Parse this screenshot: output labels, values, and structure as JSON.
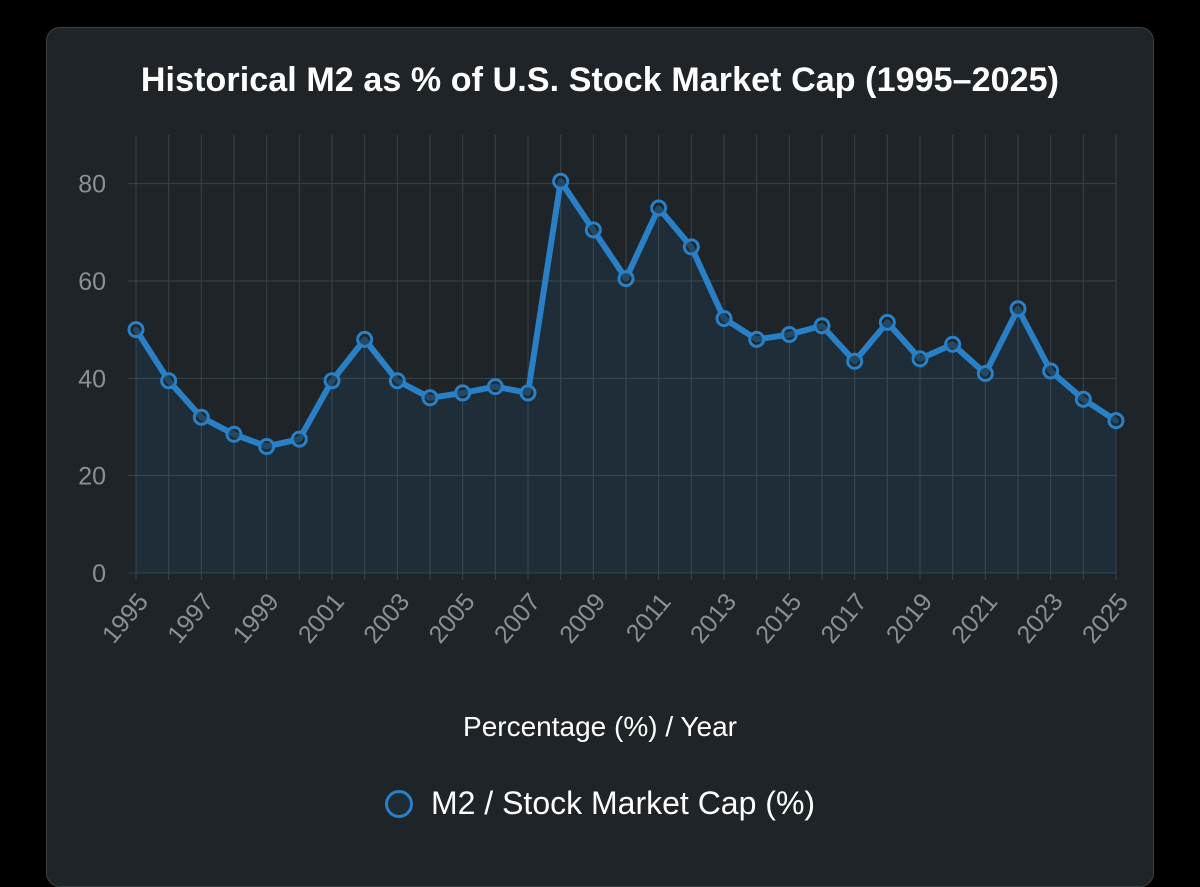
{
  "colors": {
    "line": "#2980c6",
    "fill": "rgba(41,128,198,0.10)",
    "grid": "#39444a",
    "tick": "#8a9196",
    "point_fill": "#1e2427"
  },
  "chart_data": {
    "type": "line",
    "title": "Historical M2 as % of U.S. Stock Market Cap (1995–2025)",
    "xlabel": "Percentage (%) / Year",
    "ylabel": "",
    "ylim": [
      0,
      90
    ],
    "yticks": [
      0,
      20,
      40,
      60,
      80
    ],
    "x": [
      1995,
      1996,
      1997,
      1998,
      1999,
      2000,
      2001,
      2002,
      2003,
      2004,
      2005,
      2006,
      2007,
      2008,
      2009,
      2010,
      2011,
      2012,
      2013,
      2014,
      2015,
      2016,
      2017,
      2018,
      2019,
      2020,
      2021,
      2022,
      2023,
      2024,
      2025
    ],
    "xticks": [
      "1995",
      "1997",
      "1999",
      "2001",
      "2003",
      "2005",
      "2007",
      "2009",
      "2011",
      "2013",
      "2015",
      "2017",
      "2019",
      "2021",
      "2023",
      "2025"
    ],
    "series": [
      {
        "name": "M2 / Stock Market Cap (%)",
        "values": [
          50,
          39.5,
          32,
          28.5,
          26,
          27.5,
          39.5,
          48,
          39.5,
          36,
          37,
          38.3,
          37,
          80.5,
          70.5,
          60.5,
          75,
          67,
          52.3,
          48,
          49,
          50.8,
          43.5,
          51.5,
          44,
          47,
          41,
          54.3,
          41.5,
          35.7,
          31.3
        ]
      }
    ],
    "grid": true,
    "legend_position": "bottom"
  }
}
